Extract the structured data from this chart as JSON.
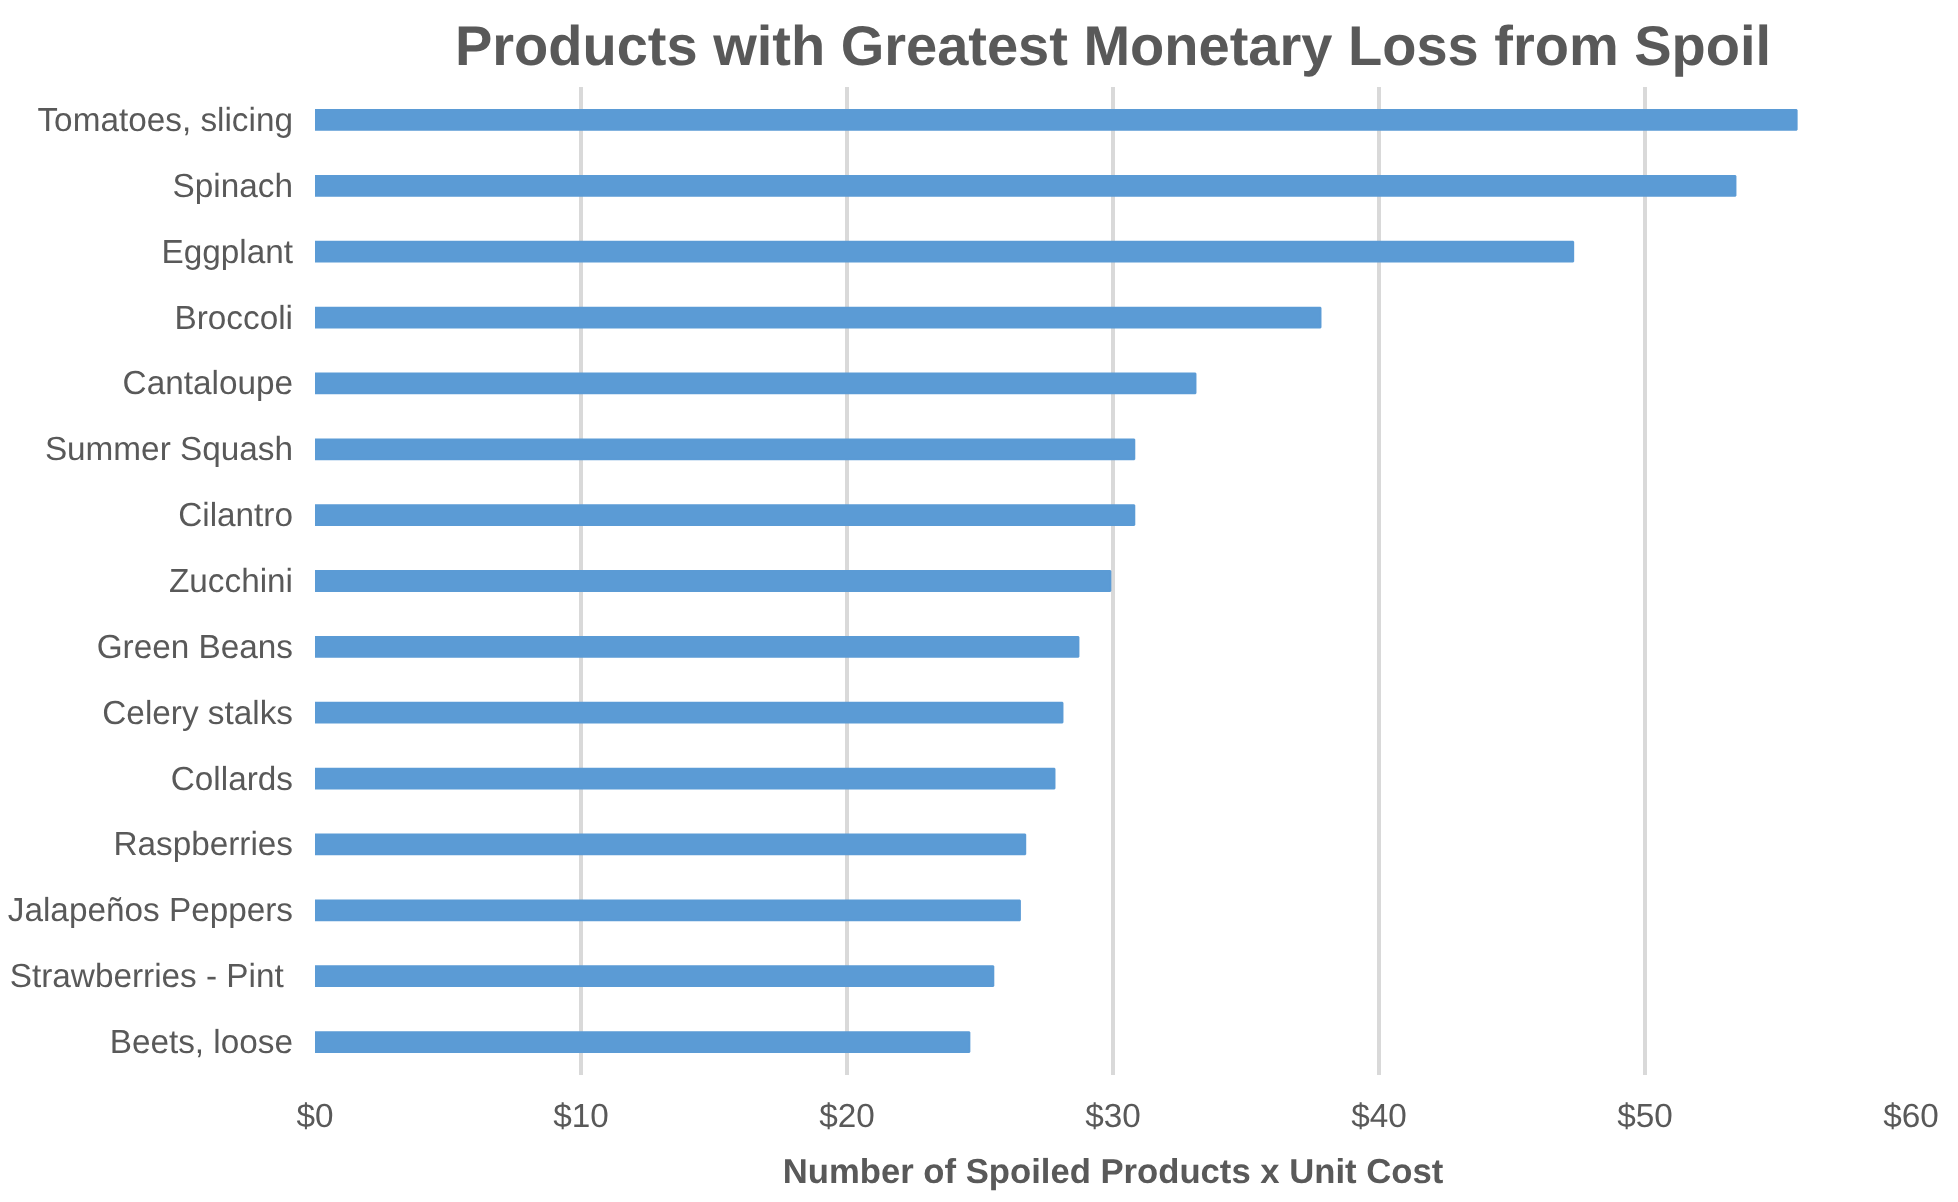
{
  "chart_data": {
    "type": "bar",
    "orientation": "horizontal",
    "title": "Products with Greatest Monetary Loss from Spoil",
    "xlabel": "Number of Spoiled Products x Unit Cost",
    "categories": [
      "Tomatoes, slicing",
      "Spinach",
      "Eggplant",
      "Broccoli",
      "Cantaloupe",
      "Summer Squash",
      "Cilantro",
      "Zucchini",
      "Green Beans",
      "Celery stalks",
      "Collards",
      "Raspberries",
      "Jalapeños Peppers",
      "Strawberries  - Pint",
      "Beets, loose"
    ],
    "values": [
      55.7,
      53.4,
      47.3,
      37.8,
      33.1,
      30.8,
      30.8,
      29.9,
      28.7,
      28.1,
      27.8,
      26.7,
      26.5,
      25.5,
      24.6
    ],
    "color": "#5b9bd5",
    "xlim": [
      0,
      60
    ],
    "xticks": [
      {
        "value": 0,
        "label": "$0"
      },
      {
        "value": 10,
        "label": "$10"
      },
      {
        "value": 20,
        "label": "$20"
      },
      {
        "value": 30,
        "label": "$30"
      },
      {
        "value": 40,
        "label": "$40"
      },
      {
        "value": 50,
        "label": "$50"
      },
      {
        "value": 60,
        "label": "$60"
      }
    ],
    "grid": "x"
  }
}
